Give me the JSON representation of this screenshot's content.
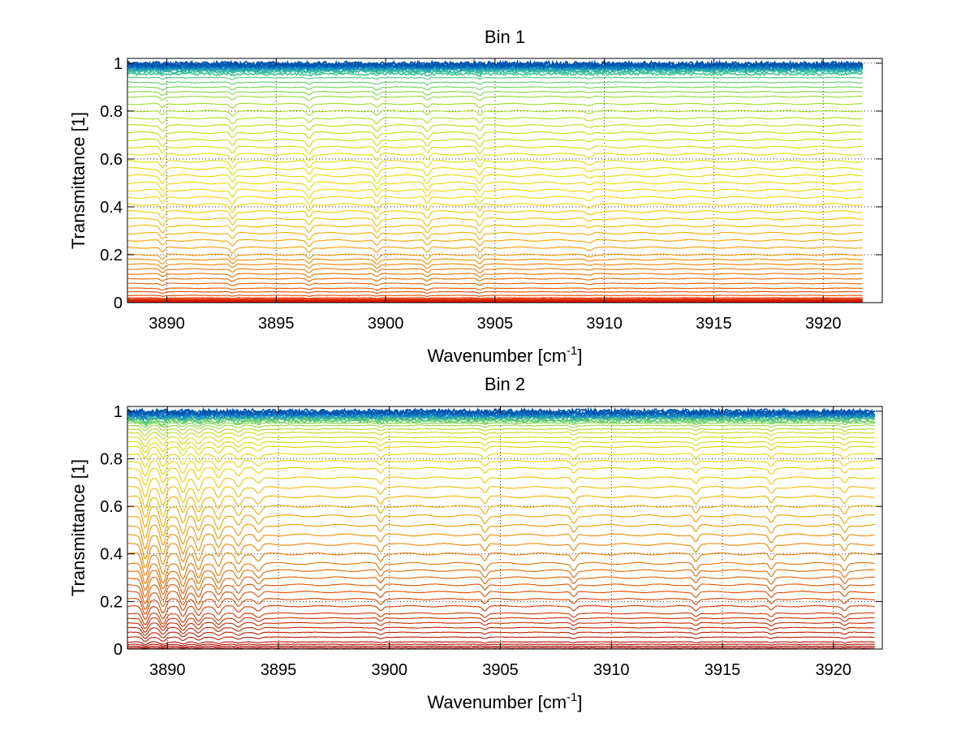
{
  "chart_data": [
    {
      "type": "line",
      "title": "Bin 1",
      "xlabel": "Wavenumber [cm",
      "xlabel_sup": "-1",
      "xlabel_end": "]",
      "ylabel": "Transmittance [1]",
      "xlim": [
        3888.2,
        3922.7
      ],
      "ylim": [
        0,
        1.02
      ],
      "xticks": [
        3890,
        3895,
        3900,
        3905,
        3910,
        3915,
        3920
      ],
      "yticks": [
        0,
        0.2,
        0.4,
        0.6,
        0.8,
        1
      ],
      "xtick_labels": [
        "3890",
        "3895",
        "3900",
        "3905",
        "3910",
        "3915",
        "3920"
      ],
      "ytick_labels": [
        "0",
        "0.2",
        "0.4",
        "0.6",
        "0.8",
        "1"
      ],
      "grid": true,
      "x_range": [
        3888.2,
        3921.8
      ],
      "absorption_lines": [
        3889.8,
        3893.0,
        3896.5,
        3899.6,
        3901.9,
        3904.3,
        3909.3
      ],
      "emission_lines": [
        3909.3
      ],
      "series_levels": [
        0.0,
        0.002,
        0.004,
        0.006,
        0.008,
        0.01,
        0.013,
        0.016,
        0.02,
        0.03,
        0.045,
        0.06,
        0.08,
        0.1,
        0.12,
        0.14,
        0.16,
        0.18,
        0.2,
        0.23,
        0.26,
        0.29,
        0.32,
        0.35,
        0.38,
        0.41,
        0.44,
        0.47,
        0.5,
        0.53,
        0.56,
        0.59,
        0.62,
        0.65,
        0.68,
        0.71,
        0.74,
        0.77,
        0.8,
        0.83,
        0.86,
        0.88,
        0.9,
        0.92,
        0.94,
        0.955,
        0.965,
        0.97,
        0.975,
        0.978,
        0.98,
        0.982,
        0.984,
        0.986,
        0.988,
        0.99,
        0.992,
        0.994,
        0.996
      ],
      "colors": [
        "#c80000",
        "#e03000",
        "#e86a00",
        "#f0a000",
        "#f0d800",
        "#d8e000",
        "#a0e020",
        "#40c890",
        "#1890c8",
        "#0050b0"
      ]
    },
    {
      "type": "line",
      "title": "Bin 2",
      "xlabel": "Wavenumber [cm",
      "xlabel_sup": "-1",
      "xlabel_end": "]",
      "ylabel": "Transmittance [1]",
      "xlim": [
        3888.2,
        3922.2
      ],
      "ylim": [
        0,
        1.02
      ],
      "xticks": [
        3890,
        3895,
        3900,
        3905,
        3910,
        3915,
        3920
      ],
      "yticks": [
        0,
        0.2,
        0.4,
        0.6,
        0.8,
        1
      ],
      "xtick_labels": [
        "3890",
        "3895",
        "3900",
        "3905",
        "3910",
        "3915",
        "3920"
      ],
      "ytick_labels": [
        "0",
        "0.2",
        "0.4",
        "0.6",
        "0.8",
        "1"
      ],
      "grid": true,
      "x_range": [
        3888.2,
        3921.9
      ],
      "absorption_lines": [
        3889.0,
        3889.8,
        3890.7,
        3891.4,
        3892.3,
        3893.2,
        3894.1,
        3899.6,
        3904.3,
        3908.3,
        3913.8,
        3917.2,
        3920.5
      ],
      "emission_lines": [],
      "series_levels": [
        0.005,
        0.012,
        0.02,
        0.03,
        0.05,
        0.07,
        0.09,
        0.11,
        0.13,
        0.15,
        0.18,
        0.21,
        0.24,
        0.27,
        0.3,
        0.33,
        0.36,
        0.4,
        0.44,
        0.48,
        0.52,
        0.56,
        0.6,
        0.64,
        0.68,
        0.72,
        0.76,
        0.79,
        0.82,
        0.85,
        0.87,
        0.89,
        0.91,
        0.925,
        0.94,
        0.95,
        0.958,
        0.965,
        0.97,
        0.975,
        0.978,
        0.981,
        0.984,
        0.987,
        0.99,
        0.993,
        0.996,
        0.998
      ],
      "colors": [
        "#a00000",
        "#c02000",
        "#d84000",
        "#e87000",
        "#f0a000",
        "#f0d000",
        "#d0e010",
        "#60d070",
        "#1890c8",
        "#0050b0"
      ]
    }
  ]
}
